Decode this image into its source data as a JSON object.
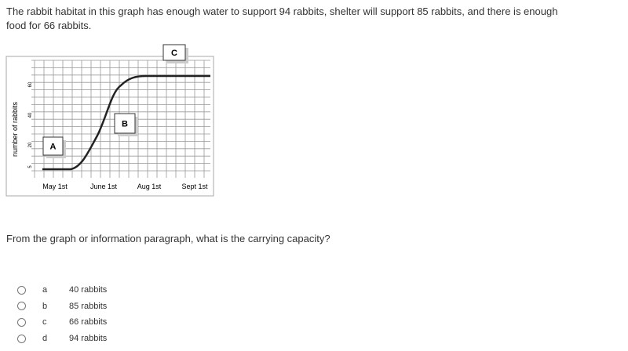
{
  "question": {
    "text": "The rabbit habitat in this graph has enough water to support 94 rabbits, shelter will support 85 rabbits, and there is enough food for 66 rabbits."
  },
  "graph": {
    "y_axis_label": "number of rabbits",
    "y_ticks": [
      "60",
      "40",
      "20",
      "5"
    ],
    "x_ticks": [
      "May 1st",
      "June 1st",
      "Aug 1st",
      "Sept 1st"
    ],
    "markers": [
      "A",
      "B",
      "C"
    ]
  },
  "prompt": {
    "text": "From the graph or information paragraph, what is the carrying capacity?"
  },
  "options": [
    {
      "letter": "a",
      "text": "40 rabbits"
    },
    {
      "letter": "b",
      "text": "85 rabbits"
    },
    {
      "letter": "c",
      "text": "66 rabbits"
    },
    {
      "letter": "d",
      "text": "94 rabbits"
    }
  ]
}
